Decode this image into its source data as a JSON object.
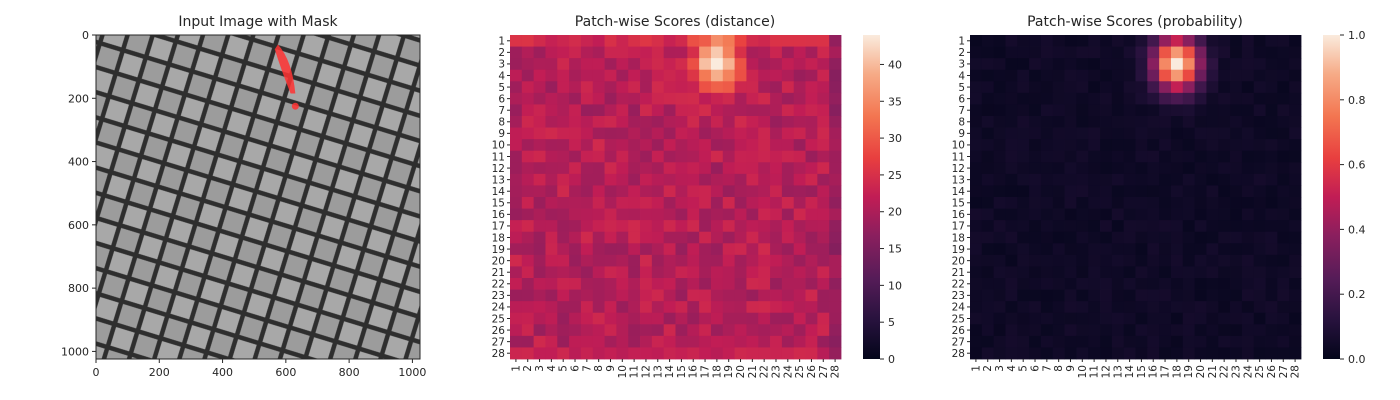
{
  "chart_data": [
    {
      "type": "image",
      "title": "Input Image with Mask",
      "xlim": [
        0,
        1024
      ],
      "ylim": [
        1024,
        0
      ],
      "xticks": [
        0,
        200,
        400,
        600,
        800,
        1000
      ],
      "yticks": [
        0,
        200,
        400,
        600,
        800,
        1000
      ],
      "image": "grayscale wire-mesh texture with diagonal diamond cells",
      "mask_color": "#ff3333",
      "mask_regions": [
        {
          "x": 590,
          "y": 90
        },
        {
          "x": 630,
          "y": 225
        }
      ]
    },
    {
      "type": "heatmap",
      "title": "Patch-wise Scores (distance)",
      "rows": 28,
      "cols": 28,
      "row_labels": [
        "1",
        "2",
        "3",
        "4",
        "5",
        "6",
        "7",
        "8",
        "9",
        "10",
        "11",
        "12",
        "13",
        "14",
        "15",
        "16",
        "17",
        "18",
        "19",
        "20",
        "21",
        "22",
        "23",
        "24",
        "25",
        "26",
        "27",
        "28"
      ],
      "col_labels": [
        "1",
        "2",
        "3",
        "4",
        "5",
        "6",
        "7",
        "8",
        "9",
        "10",
        "11",
        "12",
        "13",
        "14",
        "15",
        "16",
        "17",
        "18",
        "19",
        "20",
        "21",
        "22",
        "23",
        "24",
        "25",
        "26",
        "27",
        "28"
      ],
      "colormap": "rocket",
      "colorbar": {
        "min": 0,
        "max": 44,
        "ticks": [
          0,
          5,
          10,
          15,
          20,
          25,
          30,
          35,
          40
        ]
      },
      "baseline_value": 21,
      "hotspot": {
        "peak_row": 3,
        "peak_col": 18,
        "peak_value": 44,
        "extent_rows": [
          1,
          8
        ],
        "extent_cols": [
          15,
          21
        ]
      },
      "border_rows": {
        "top": 24,
        "bottom": 23
      },
      "border_cols": {
        "left": 20,
        "right": 16
      }
    },
    {
      "type": "heatmap",
      "title": "Patch-wise Scores (probability)",
      "rows": 28,
      "cols": 28,
      "row_labels": [
        "1",
        "2",
        "3",
        "4",
        "5",
        "6",
        "7",
        "8",
        "9",
        "10",
        "11",
        "12",
        "13",
        "14",
        "15",
        "16",
        "17",
        "18",
        "19",
        "20",
        "21",
        "22",
        "23",
        "24",
        "25",
        "26",
        "27",
        "28"
      ],
      "col_labels": [
        "1",
        "2",
        "3",
        "4",
        "5",
        "6",
        "7",
        "8",
        "9",
        "10",
        "11",
        "12",
        "13",
        "14",
        "15",
        "16",
        "17",
        "18",
        "19",
        "20",
        "21",
        "22",
        "23",
        "24",
        "25",
        "26",
        "27",
        "28"
      ],
      "colormap": "rocket",
      "colorbar": {
        "min": 0.0,
        "max": 1.0,
        "ticks": [
          "0.0",
          "0.2",
          "0.4",
          "0.6",
          "0.8",
          "1.0"
        ]
      },
      "baseline_value": 0.02,
      "hotspot": {
        "peak_row": 3,
        "peak_col": 18,
        "peak_value": 1.0,
        "extent_rows": [
          1,
          8
        ],
        "extent_cols": [
          15,
          21
        ]
      }
    }
  ]
}
